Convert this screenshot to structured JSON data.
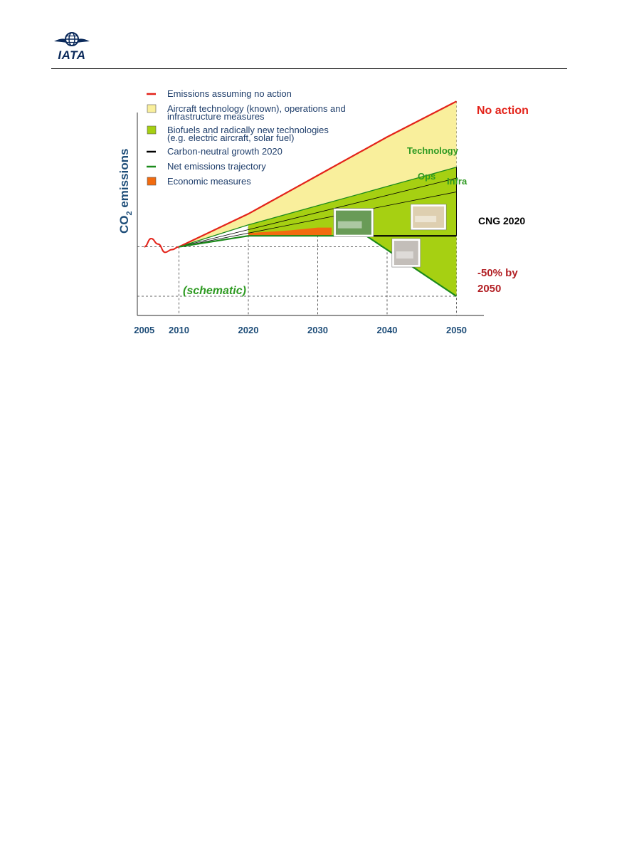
{
  "header": {
    "logo_text": "IATA"
  },
  "colors": {
    "no_action": "#e3231a",
    "aircraft_tech": "#f9ef9c",
    "biofuels": "#a6d012",
    "carbon_neutral": "#000000",
    "net_emissions": "#1b8a1b",
    "economic": "#f26b0f",
    "axis_label": "#1f4e79",
    "annotation_red": "#b21f24",
    "annotation_green": "#2e9a22"
  },
  "chart_data": {
    "type": "area",
    "ylabel_main": "CO",
    "ylabel_sub": "2",
    "ylabel_rest": " emissions",
    "x_ticks": [
      "2005",
      "2010",
      "2020",
      "2030",
      "2040",
      "2050"
    ],
    "legend": [
      {
        "kind": "line",
        "color": "#e3231a",
        "lines": [
          "Emissions assuming no action"
        ]
      },
      {
        "kind": "box",
        "color": "#f9ef9c",
        "lines": [
          "Aircraft technology (known), operations and",
          "infrastructure measures"
        ]
      },
      {
        "kind": "box",
        "color": "#a6d012",
        "lines": [
          "Biofuels and radically new technologies",
          "(e.g. electric aircraft, solar fuel)"
        ]
      },
      {
        "kind": "line",
        "color": "#000000",
        "lines": [
          "Carbon-neutral growth 2020"
        ]
      },
      {
        "kind": "line",
        "color": "#1b8a1b",
        "lines": [
          "Net emissions trajectory"
        ]
      },
      {
        "kind": "box",
        "color": "#f26b0f",
        "lines": [
          "Economic measures"
        ]
      }
    ],
    "annotations": {
      "no_action": "No action",
      "technology": "Technology",
      "ops": "Ops",
      "infra": "Infra",
      "cng": "CNG 2020",
      "minus50_line1": "-50% by",
      "minus50_line2": "2050",
      "schematic": "(schematic)"
    },
    "series": {
      "history": [
        [
          2005,
          100
        ],
        [
          2006,
          103
        ],
        [
          2007,
          101
        ],
        [
          2008,
          98
        ],
        [
          2009,
          99
        ],
        [
          2010,
          100
        ]
      ],
      "no_action": [
        [
          2010,
          100
        ],
        [
          2020,
          112
        ],
        [
          2030,
          126
        ],
        [
          2040,
          140
        ],
        [
          2050,
          153
        ]
      ],
      "technology_top": [
        [
          2010,
          100
        ],
        [
          2020,
          108
        ],
        [
          2030,
          115
        ],
        [
          2040,
          122
        ],
        [
          2050,
          129
        ]
      ],
      "ops_line": [
        [
          2010,
          100
        ],
        [
          2050,
          125
        ]
      ],
      "infra_line": [
        [
          2010,
          100
        ],
        [
          2050,
          120
        ]
      ],
      "economic_top": [
        [
          2020,
          105
        ],
        [
          2026,
          106
        ],
        [
          2030,
          107
        ],
        [
          2032,
          107
        ]
      ],
      "cng_level": 104,
      "net_emissions": [
        [
          2010,
          100
        ],
        [
          2020,
          104
        ],
        [
          2037,
          104
        ],
        [
          2050,
          82
        ]
      ],
      "half_2005_level": 82
    },
    "xlim": [
      2004,
      2052
    ],
    "ylim": [
      75,
      158
    ],
    "gridlines_x": [
      2010,
      2020,
      2030,
      2040,
      2050
    ],
    "gridlines_y": [
      100,
      82
    ]
  }
}
